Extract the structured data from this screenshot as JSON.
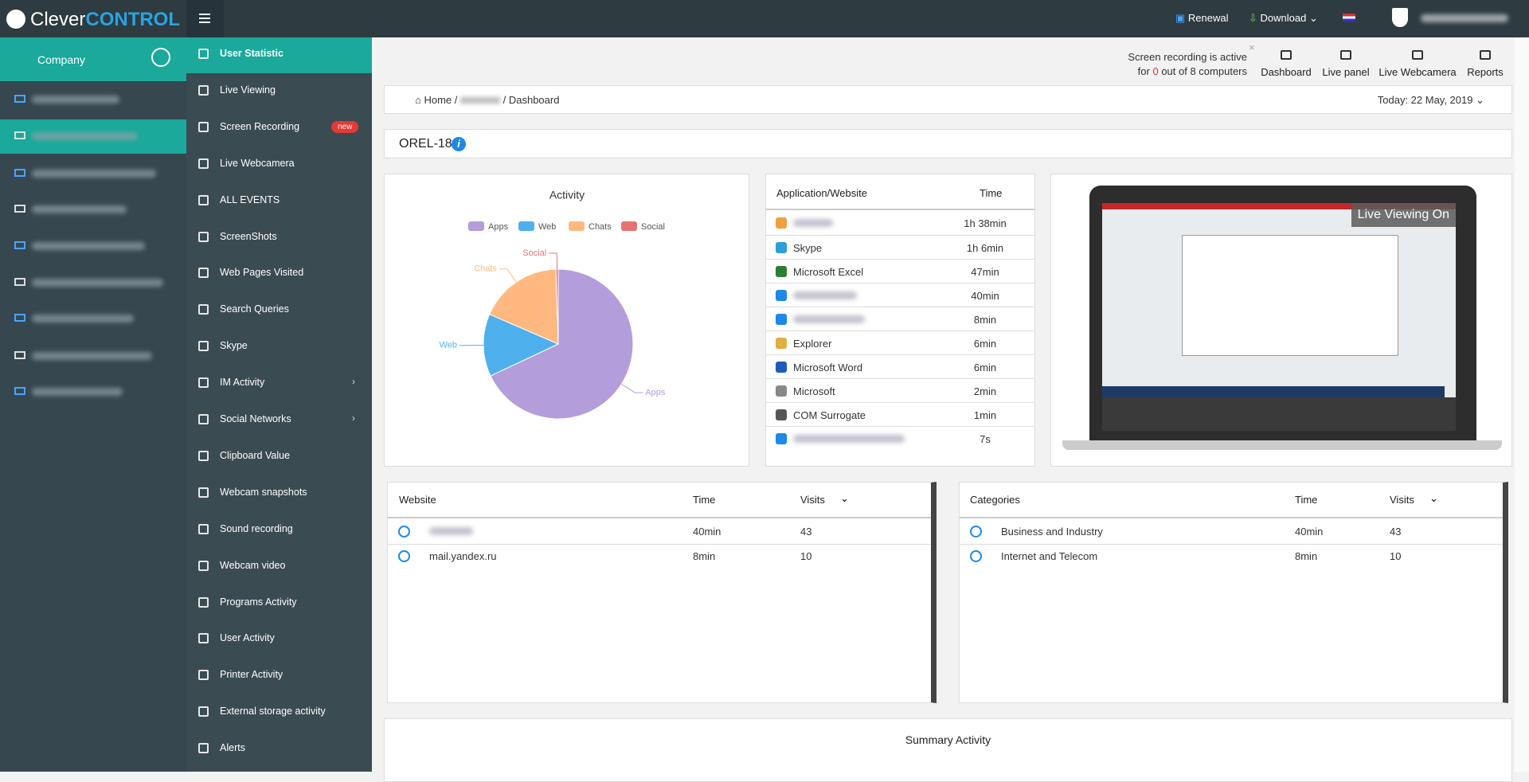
{
  "header": {
    "logo_clever": "Clever",
    "logo_control": "CONTROL",
    "renewal": "Renewal",
    "download": "Download"
  },
  "sidebar": {
    "company": "Company"
  },
  "menu": [
    "User Statistic",
    "Live Viewing",
    "Screen Recording",
    "Live Webcamera",
    "ALL EVENTS",
    "ScreenShots",
    "Web Pages Visited",
    "Search Queries",
    "Skype",
    "IM Activity",
    "Social Networks",
    "Clipboard Value",
    "Webcam snapshots",
    "Sound recording",
    "Webcam video",
    "Programs Activity",
    "User Activity",
    "Printer Activity",
    "External storage activity",
    "Alerts"
  ],
  "menu_badge": "new",
  "status": {
    "line1": "Screen recording is active",
    "line2_prefix": "for",
    "count": 0,
    "line2_suffix": "out of 8 computers"
  },
  "toolbar": [
    "Dashboard",
    "Live panel",
    "Live Webcamera",
    "Reports"
  ],
  "breadcrumb": {
    "home": "Home",
    "current": "Dashboard",
    "date": "Today: 22 May, 2019"
  },
  "computer": "OREL-18",
  "live_viewing": "Live Viewing On",
  "chart_data": {
    "type": "pie",
    "title": "Activity",
    "categories": [
      "Apps",
      "Web",
      "Chats",
      "Social"
    ],
    "values": [
      68,
      13.5,
      18,
      0.5
    ],
    "colors": [
      "#b39ddb",
      "#4fb0ee",
      "#ffb980",
      "#e57373"
    ],
    "legend": "top"
  },
  "apps_table": {
    "headers": [
      "Application/Website",
      "Time"
    ],
    "rows": [
      {
        "time": "1h 38min"
      },
      {
        "name": "Skype",
        "time": "1h 6min"
      },
      {
        "name": "Microsoft Excel",
        "time": "47min"
      },
      {
        "time": "40min"
      },
      {
        "time": "8min"
      },
      {
        "name": "Explorer",
        "time": "6min"
      },
      {
        "name": "Microsoft Word",
        "time": "6min"
      },
      {
        "name": "Microsoft",
        "time": "2min"
      },
      {
        "name": "COM Surrogate",
        "time": "1min"
      },
      {
        "time": "7s"
      }
    ]
  },
  "website_table": {
    "headers": [
      "Website",
      "Time",
      "Visits"
    ],
    "rows": [
      {
        "time": "40min",
        "visits": 43
      },
      {
        "name": "mail.yandex.ru",
        "time": "8min",
        "visits": 10
      }
    ]
  },
  "categories_table": {
    "headers": [
      "Categories",
      "Time",
      "Visits"
    ],
    "rows": [
      {
        "name": "Business and Industry",
        "time": "40min",
        "visits": 43
      },
      {
        "name": "Internet and Telecom",
        "time": "8min",
        "visits": 10
      }
    ]
  },
  "summary_title": "Summary Activity"
}
